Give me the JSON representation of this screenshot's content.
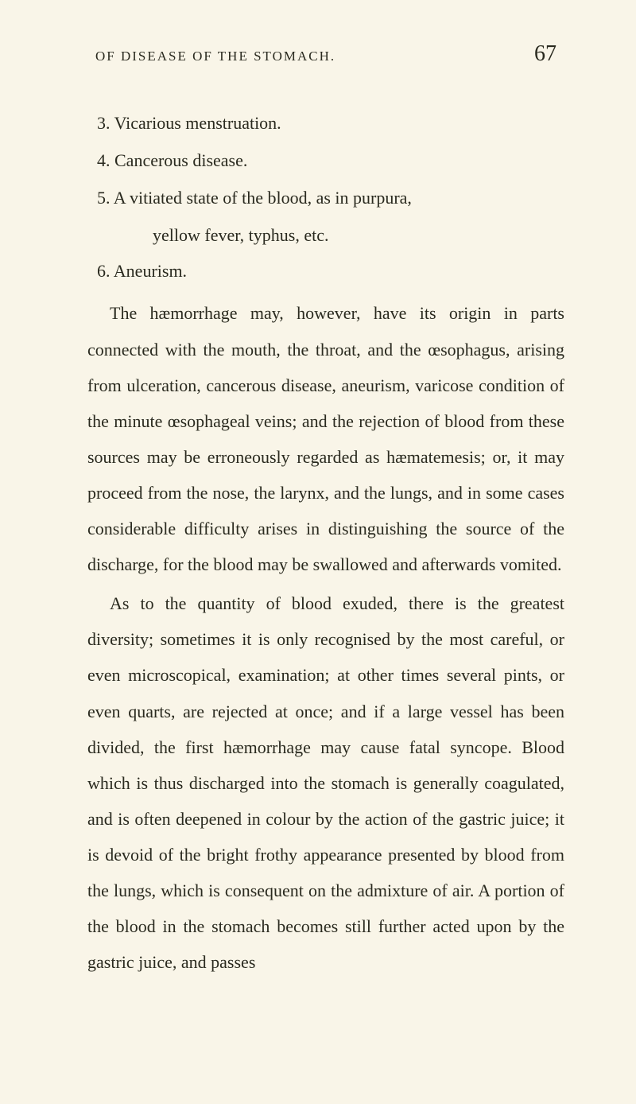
{
  "header": {
    "running_title": "OF DISEASE OF THE STOMACH.",
    "page_number": "67"
  },
  "list": {
    "item3": "3. Vicarious menstruation.",
    "item4": "4. Cancerous disease.",
    "item5_line1": "5. A vitiated state of the blood, as in purpura,",
    "item5_line2": "yellow fever, typhus, etc.",
    "item6": "6. Aneurism."
  },
  "paragraphs": {
    "p1": "The hæmorrhage may, however, have its origin in parts connected with the mouth, the throat, and the œsophagus, arising from ulceration, cancerous disease, aneurism, varicose condition of the minute œsophageal veins; and the rejection of blood from these sources may be erroneously regarded as hæmatemesis; or, it may proceed from the nose, the larynx, and the lungs, and in some cases considerable difficulty arises in distinguishing the source of the discharge, for the blood may be swallowed and afterwards vomited.",
    "p2": "As to the quantity of blood exuded, there is the greatest diversity; sometimes it is only recognised by the most careful, or even microscopical, examination; at other times several pints, or even quarts, are rejected at once; and if a large vessel has been divided, the first hæmorrhage may cause fatal syncope. Blood which is thus discharged into the stomach is generally coagulated, and is often deepened in colour by the action of the gastric juice; it is devoid of the bright frothy appearance presented by blood from the lungs, which is consequent on the admixture of air. A portion of the blood in the stomach becomes still further acted upon by the gastric juice, and passes"
  },
  "styling": {
    "background_color": "#f9f5e8",
    "text_color": "#2a2a1f",
    "body_fontsize": 22,
    "header_fontsize": 17,
    "pagenum_fontsize": 28,
    "line_height": 2.05,
    "font_family": "Georgia, Times New Roman, serif"
  }
}
